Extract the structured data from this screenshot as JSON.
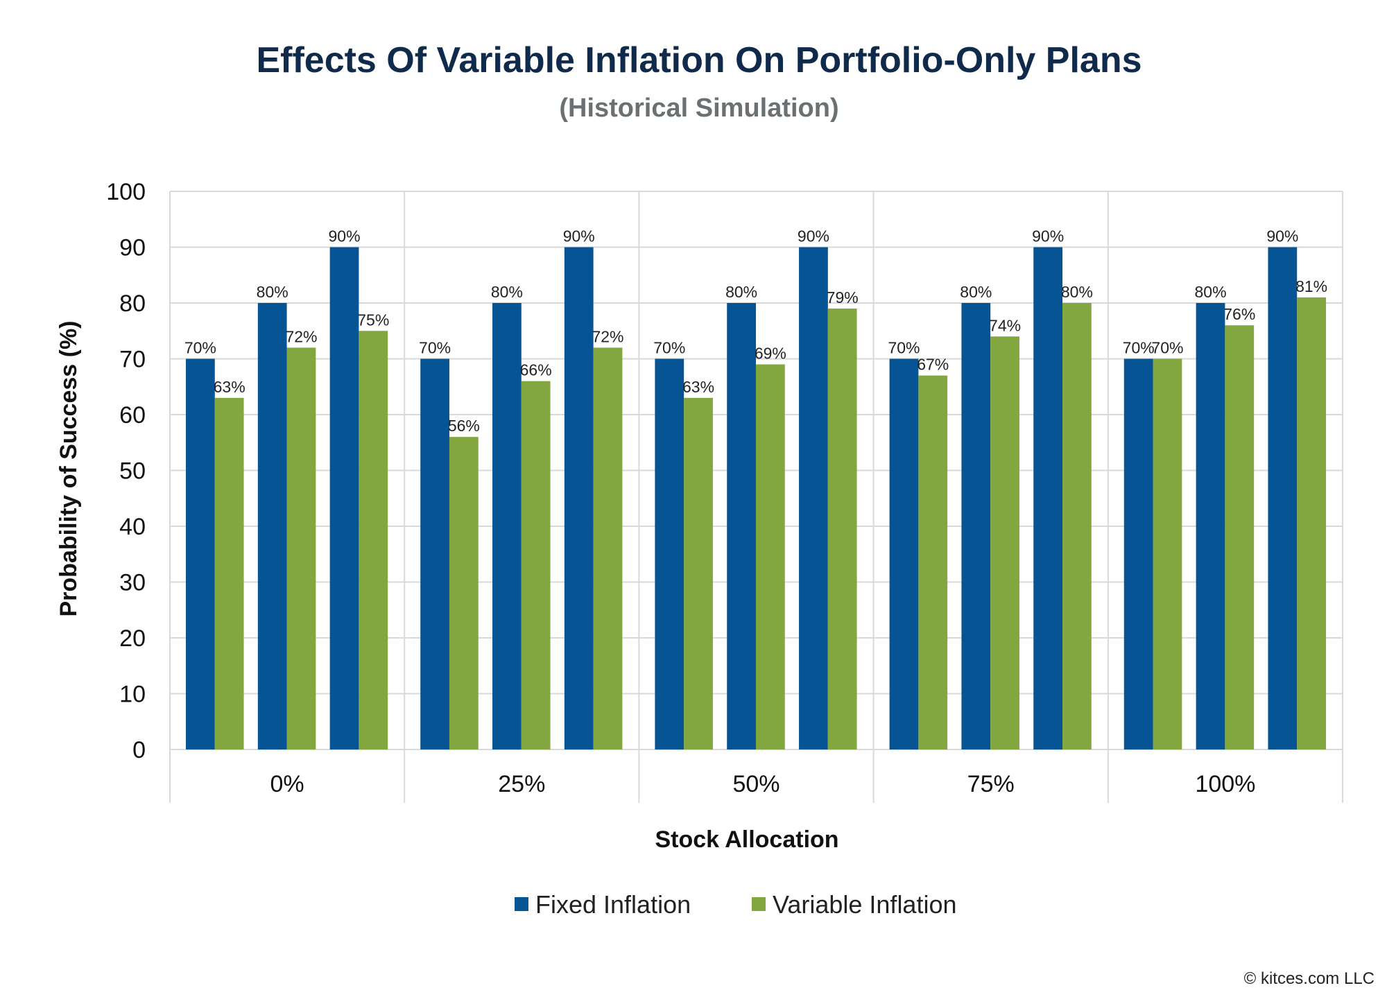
{
  "chart_data": {
    "type": "bar",
    "title": "Effects Of Variable Inflation On Portfolio-Only Plans",
    "subtitle": "(Historical Simulation)",
    "xlabel": "Stock Allocation",
    "ylabel": "Probability of Success (%)",
    "ylim": [
      0,
      100
    ],
    "yticks": [
      "0",
      "10",
      "20",
      "30",
      "40",
      "50",
      "60",
      "70",
      "80",
      "90",
      "100"
    ],
    "grid": true,
    "legend_position": "bottom",
    "categories": [
      "0%",
      "25%",
      "50%",
      "75%",
      "100%"
    ],
    "subgroups_per_category": 3,
    "series": [
      {
        "name": "Fixed Inflation",
        "color": "#065493",
        "values": [
          [
            70,
            80,
            90
          ],
          [
            70,
            80,
            90
          ],
          [
            70,
            80,
            90
          ],
          [
            70,
            80,
            90
          ],
          [
            70,
            80,
            90
          ]
        ]
      },
      {
        "name": "Variable Inflation",
        "color": "#82a73f",
        "values": [
          [
            63,
            72,
            75
          ],
          [
            56,
            66,
            72
          ],
          [
            63,
            69,
            79
          ],
          [
            67,
            74,
            80
          ],
          [
            70,
            76,
            81
          ]
        ]
      }
    ],
    "data_label_suffix": "%"
  },
  "footer": {
    "copyright": "© kitces.com LLC"
  }
}
